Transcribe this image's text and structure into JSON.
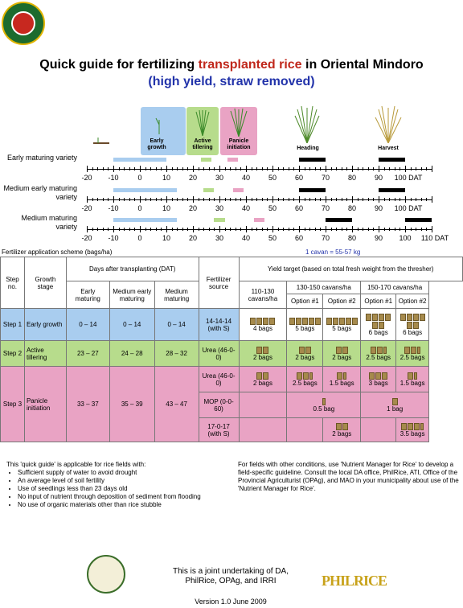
{
  "title": {
    "part1": "Quick guide for fertilizing ",
    "highlight": "transplanted rice",
    "part2": " in Oriental Mindoro ",
    "sub": "(high yield, straw removed)"
  },
  "stages": {
    "early_growth": "Early growth",
    "active_tillering": "Active tillering",
    "panicle_initiation": "Panicle initiation",
    "heading": "Heading",
    "harvest": "Harvest"
  },
  "varieties": [
    "Early maturing variety",
    "Medium early maturing variety",
    "Medium maturing variety"
  ],
  "axis_ticks": [
    "-20",
    "-10",
    "0",
    "10",
    "20",
    "30",
    "40",
    "50",
    "60",
    "70",
    "80",
    "90"
  ],
  "axis_end": [
    "100 DAT",
    "100 DAT",
    "110 DAT"
  ],
  "axis_last_extra": "100",
  "scheme_label": "Fertilizer application scheme (bags/ha)",
  "cavan_note": "1 cavan = 55-57 kg",
  "headers": {
    "step": "Step no.",
    "growth_stage": "Growth stage",
    "dat": "Days after transplanting (DAT)",
    "early": "Early maturing",
    "medium_early": "Medium early maturing",
    "medium": "Medium maturing",
    "fert_source": "Fertilizer source",
    "yield_target": "Yield target (based on total fresh weight from the thresher)",
    "y1": "110-130 cavans/ha",
    "y2": "130-150 cavans/ha",
    "y3": "150-170 cavans/ha",
    "opt1": "Option #1",
    "opt2": "Option #2"
  },
  "rows": [
    {
      "step": "Step 1",
      "stage": "Early growth",
      "early": "0 – 14",
      "medium_early": "0 – 14",
      "medium": "0 – 14",
      "source": "14-14-14 (with S)",
      "c1": "4 bags",
      "c2": "5 bags",
      "c3": "5 bags",
      "c4": "6 bags",
      "c5": "6 bags"
    },
    {
      "step": "Step 2",
      "stage": "Active tillering",
      "early": "23 – 27",
      "medium_early": "24 – 28",
      "medium": "28 – 32",
      "source": "Urea (46-0-0)",
      "c1": "2 bags",
      "c2": "2 bags",
      "c3": "2 bags",
      "c4": "2.5 bags",
      "c5": "2.5 bags"
    },
    {
      "step": "Step 3",
      "stage": "Panicle initiation",
      "early": "33 – 37",
      "medium_early": "35 – 39",
      "medium": "43 – 47",
      "sub": [
        {
          "source": "Urea (46-0-0)",
          "c1": "2 bags",
          "c2": "2.5 bags",
          "c3": "1.5 bags",
          "c4": "3 bags",
          "c5": "1.5 bags"
        },
        {
          "source": "MOP (0-0-60)",
          "c23": "0.5 bag",
          "c45": "1 bag"
        },
        {
          "source": "17-0-17 (with S)",
          "c3": "2 bags",
          "c5": "3.5 bags"
        }
      ]
    }
  ],
  "notes": {
    "left_intro": "This 'quick guide' is applicable for rice fields with:",
    "bullets": [
      "Sufficient supply of water to avoid drought",
      "An average level of soil fertility",
      "Use of seedlings less than 23 days old",
      "No input of nutrient through deposition of sediment from flooding",
      "No use of organic materials other than rice stubble"
    ],
    "right": "For fields with other conditions, use 'Nutrient Manager for Rice' to develop a field-specific guideline. Consult the local DA office, PhilRice, ATI, Office of the Provincial Agriculturist (OPAg), and MAO in your municipality about use of the 'Nutrient Manager for Rice'.",
    "joint": "This is a joint undertaking of DA, PhilRice, OPAg, and IRRI",
    "version": "Version 1.0 June 2009",
    "logo": "PHILRICE"
  },
  "colors": {
    "blue": "#a9cdef",
    "green": "#b7dc8c",
    "pink": "#e9a3c4",
    "step1": "#a9cdef",
    "step2": "#b7dc8c",
    "step3": "#e9a3c4",
    "header": "#fff"
  }
}
